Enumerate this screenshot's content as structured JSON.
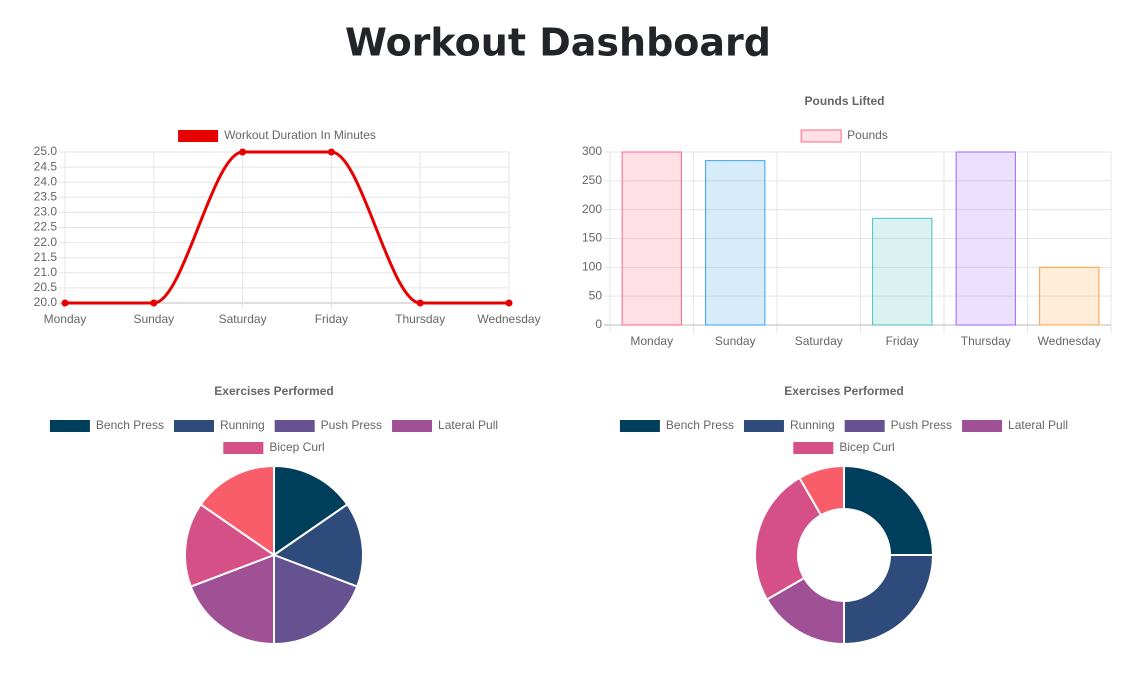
{
  "title": "Workout Dashboard",
  "chart_data": [
    {
      "type": "line",
      "categories": [
        "Monday",
        "Sunday",
        "Saturday",
        "Friday",
        "Thursday",
        "Wednesday"
      ],
      "series": [
        {
          "name": "Workout Duration In Minutes",
          "color": "#e60000",
          "values": [
            20,
            20,
            25,
            25,
            20,
            20
          ]
        }
      ],
      "ylim": [
        20,
        25
      ],
      "yticks": [
        {
          "value": 20,
          "label": "20.0"
        },
        20.5,
        {
          "value": 21,
          "label": "21.0"
        },
        21.5,
        {
          "value": 22,
          "label": "22.0"
        },
        22.5,
        {
          "value": 23,
          "label": "23.0"
        },
        23.5,
        {
          "value": 24,
          "label": "24.0"
        },
        24.5,
        {
          "value": 25,
          "label": "25.0"
        }
      ],
      "grid": true
    },
    {
      "type": "bar",
      "title": "Pounds Lifted",
      "categories": [
        "Monday",
        "Sunday",
        "Saturday",
        "Friday",
        "Thursday",
        "Wednesday"
      ],
      "series": [
        {
          "name": "Pounds",
          "values": [
            300,
            285,
            0,
            185,
            300,
            100
          ],
          "colors": [
            "rgba(255,99,132,0.2)",
            "rgba(54,162,235,0.2)",
            "rgba(255,206,86,0.2)",
            "rgba(75,192,192,0.2)",
            "rgba(153,102,255,0.2)",
            "rgba(255,159,64,0.2)"
          ],
          "border_colors": [
            "#ff6384",
            "#36a2eb",
            "#ffce56",
            "#4bc0c0",
            "#9966ff",
            "#ff9f40"
          ]
        }
      ],
      "ylim": [
        0,
        300
      ],
      "yticks": [
        0,
        50,
        100,
        150,
        200,
        250,
        300
      ],
      "grid": true
    },
    {
      "type": "pie",
      "title": "Exercises Performed",
      "categories": [
        "Bench Press",
        "Running",
        "Push Press",
        "Lateral Pull",
        "Bicep Curl",
        null
      ],
      "values": [
        4,
        4,
        5,
        5,
        4,
        4
      ],
      "colors": [
        "#003f5c",
        "#2f4b7c",
        "#665191",
        "#a05195",
        "#d45087",
        "#f95d6a"
      ]
    },
    {
      "type": "doughnut",
      "title": "Exercises Performed",
      "categories": [
        "Bench Press",
        "Running",
        "Push Press",
        "Lateral Pull",
        "Bicep Curl",
        null
      ],
      "values": [
        3,
        3,
        0,
        2,
        3,
        1
      ],
      "colors": [
        "#003f5c",
        "#2f4b7c",
        "#665191",
        "#a05195",
        "#d45087",
        "#f95d6a"
      ]
    }
  ]
}
